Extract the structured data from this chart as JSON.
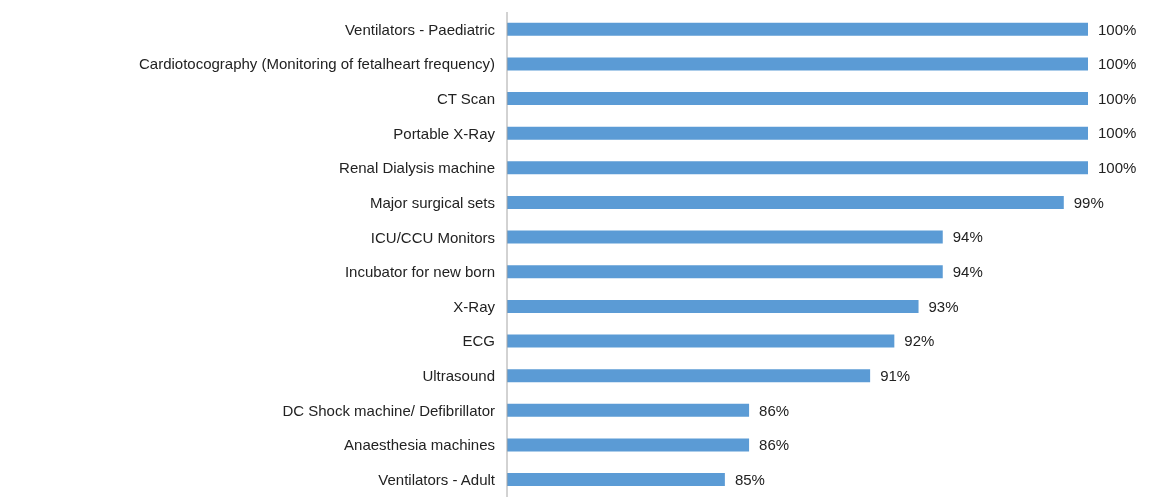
{
  "chart_data": {
    "type": "bar",
    "orientation": "horizontal",
    "categories": [
      "Ventilators - Paediatric",
      "Cardiotocography (Monitoring of fetalheart frequency)",
      "CT Scan",
      "Portable X-Ray",
      "Renal Dialysis machine",
      "Major surgical sets",
      "ICU/CCU Monitors",
      "Incubator for new born",
      "X-Ray",
      "ECG",
      "Ultrasound",
      "DC Shock machine/ Defibrillator",
      "Anaesthesia machines",
      "Ventilators - Adult"
    ],
    "values": [
      100,
      100,
      100,
      100,
      100,
      99,
      94,
      94,
      93,
      92,
      91,
      86,
      86,
      85
    ],
    "value_labels": [
      "100%",
      "100%",
      "100%",
      "100%",
      "100%",
      "99%",
      "94%",
      "94%",
      "93%",
      "92%",
      "91%",
      "86%",
      "86%",
      "85%"
    ],
    "color": "#5b9bd5",
    "xlim": [
      76,
      100
    ],
    "tick_labels": "y"
  }
}
